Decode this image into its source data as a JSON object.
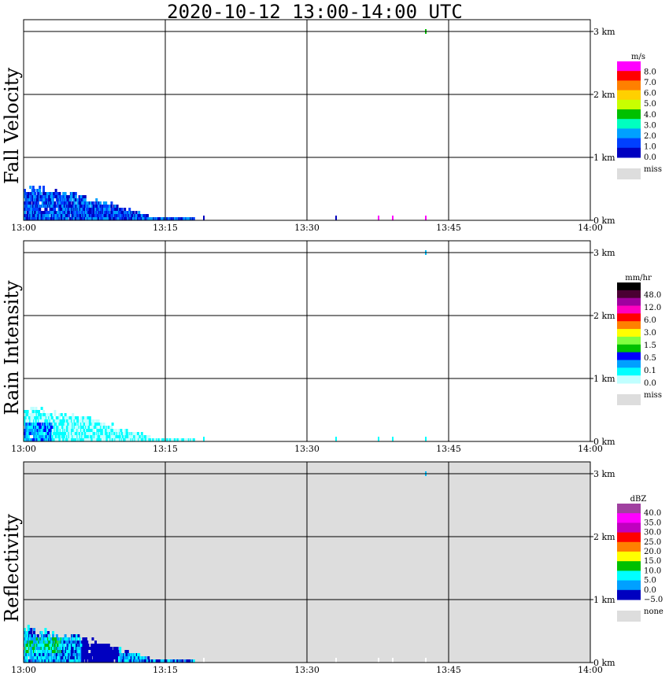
{
  "title": "2020-10-12   13:00-14:00 UTC",
  "chart_data": [
    {
      "type": "heatmap",
      "title": "Fall Velocity",
      "x_ticks": [
        "13:00",
        "13:15",
        "13:30",
        "13:45",
        "14:00"
      ],
      "y_ticks": [
        "0 km",
        "1 km",
        "2 km",
        "3 km"
      ],
      "xlim": [
        0,
        60
      ],
      "ylim_km": [
        0,
        3.2
      ],
      "background": "#ffffff",
      "legend": {
        "unit": "m/s",
        "levels": [
          "8.0",
          "7.0",
          "6.0",
          "5.0",
          "4.0",
          "3.0",
          "2.0",
          "1.0",
          "0.0"
        ],
        "colors": [
          "#ff00ff",
          "#ff0000",
          "#ff8000",
          "#ffd000",
          "#c8ff00",
          "#00c000",
          "#00ffc0",
          "#00a0ff",
          "#0040ff",
          "#0000c0"
        ],
        "miss_label": "miss",
        "miss_color": "#dddddd"
      }
    },
    {
      "type": "heatmap",
      "title": "Rain Intensity",
      "x_ticks": [
        "13:00",
        "13:15",
        "13:30",
        "13:45",
        "14:00"
      ],
      "y_ticks": [
        "0 km",
        "1 km",
        "2 km",
        "3 km"
      ],
      "xlim": [
        0,
        60
      ],
      "ylim_km": [
        0,
        3.2
      ],
      "background": "#ffffff",
      "legend": {
        "unit": "mm/hr",
        "levels": [
          "48.0",
          "12.0",
          "6.0",
          "3.0",
          "1.5",
          "0.5",
          "0.1",
          "0.0"
        ],
        "colors": [
          "#000000",
          "#4a0033",
          "#a000a0",
          "#ff00c0",
          "#ff0000",
          "#ff8000",
          "#ffff00",
          "#80ff40",
          "#00c000",
          "#0000ff",
          "#00a0ff",
          "#00ffff",
          "#c0ffff"
        ],
        "miss_label": "miss",
        "miss_color": "#dddddd"
      }
    },
    {
      "type": "heatmap",
      "title": "Reflectivity",
      "x_ticks": [
        "13:00",
        "13:15",
        "13:30",
        "13:45",
        "14:00"
      ],
      "y_ticks": [
        "0 km",
        "1 km",
        "2 km",
        "3 km"
      ],
      "xlim": [
        0,
        60
      ],
      "ylim_km": [
        0,
        3.2
      ],
      "background": "#dddddd",
      "legend": {
        "unit": "dBZ",
        "levels": [
          "40.0",
          "35.0",
          "30.0",
          "25.0",
          "20.0",
          "15.0",
          "10.0",
          "5.0",
          "0.0",
          "−5.0"
        ],
        "colors": [
          "#a040a0",
          "#ff00ff",
          "#c000c0",
          "#ff0000",
          "#ff8000",
          "#ffff00",
          "#00c000",
          "#00ffff",
          "#00a0ff",
          "#0000c0"
        ],
        "miss_label": "none",
        "miss_color": "#dddddd"
      }
    }
  ]
}
